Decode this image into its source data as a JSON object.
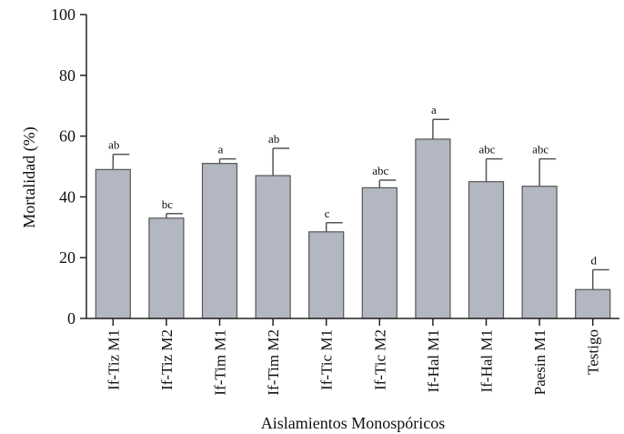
{
  "chart_data": {
    "type": "bar",
    "title": "",
    "xlabel": "Aislamientos Monospóricos",
    "ylabel": "Mortalidad (%)",
    "ylim": [
      0,
      100
    ],
    "yticks": [
      0,
      20,
      40,
      60,
      80,
      100
    ],
    "grid": false,
    "categories": [
      "If-Tiz M1",
      "If-Tiz M2",
      "If-Tim M1",
      "If-Tim M2",
      "If-Tic M1",
      "If-Tic M2",
      "If-Hal M1",
      "If-Hal M1",
      "Paesin M1",
      "Testigo"
    ],
    "series": [
      {
        "values": [
          49,
          33,
          51,
          47,
          28.5,
          43,
          59,
          45,
          43.5,
          9.5
        ],
        "error": [
          5,
          1.5,
          1.5,
          9,
          3,
          2.5,
          6.5,
          7.5,
          9,
          6.5
        ],
        "labels": [
          "ab",
          "bc",
          "a",
          "ab",
          "c",
          "abc",
          "a",
          "abc",
          "abc",
          "d"
        ]
      }
    ],
    "colors": {
      "bar_fill": "#b3b7c1",
      "bar_stroke": "#555555",
      "axis": "#222222"
    }
  }
}
